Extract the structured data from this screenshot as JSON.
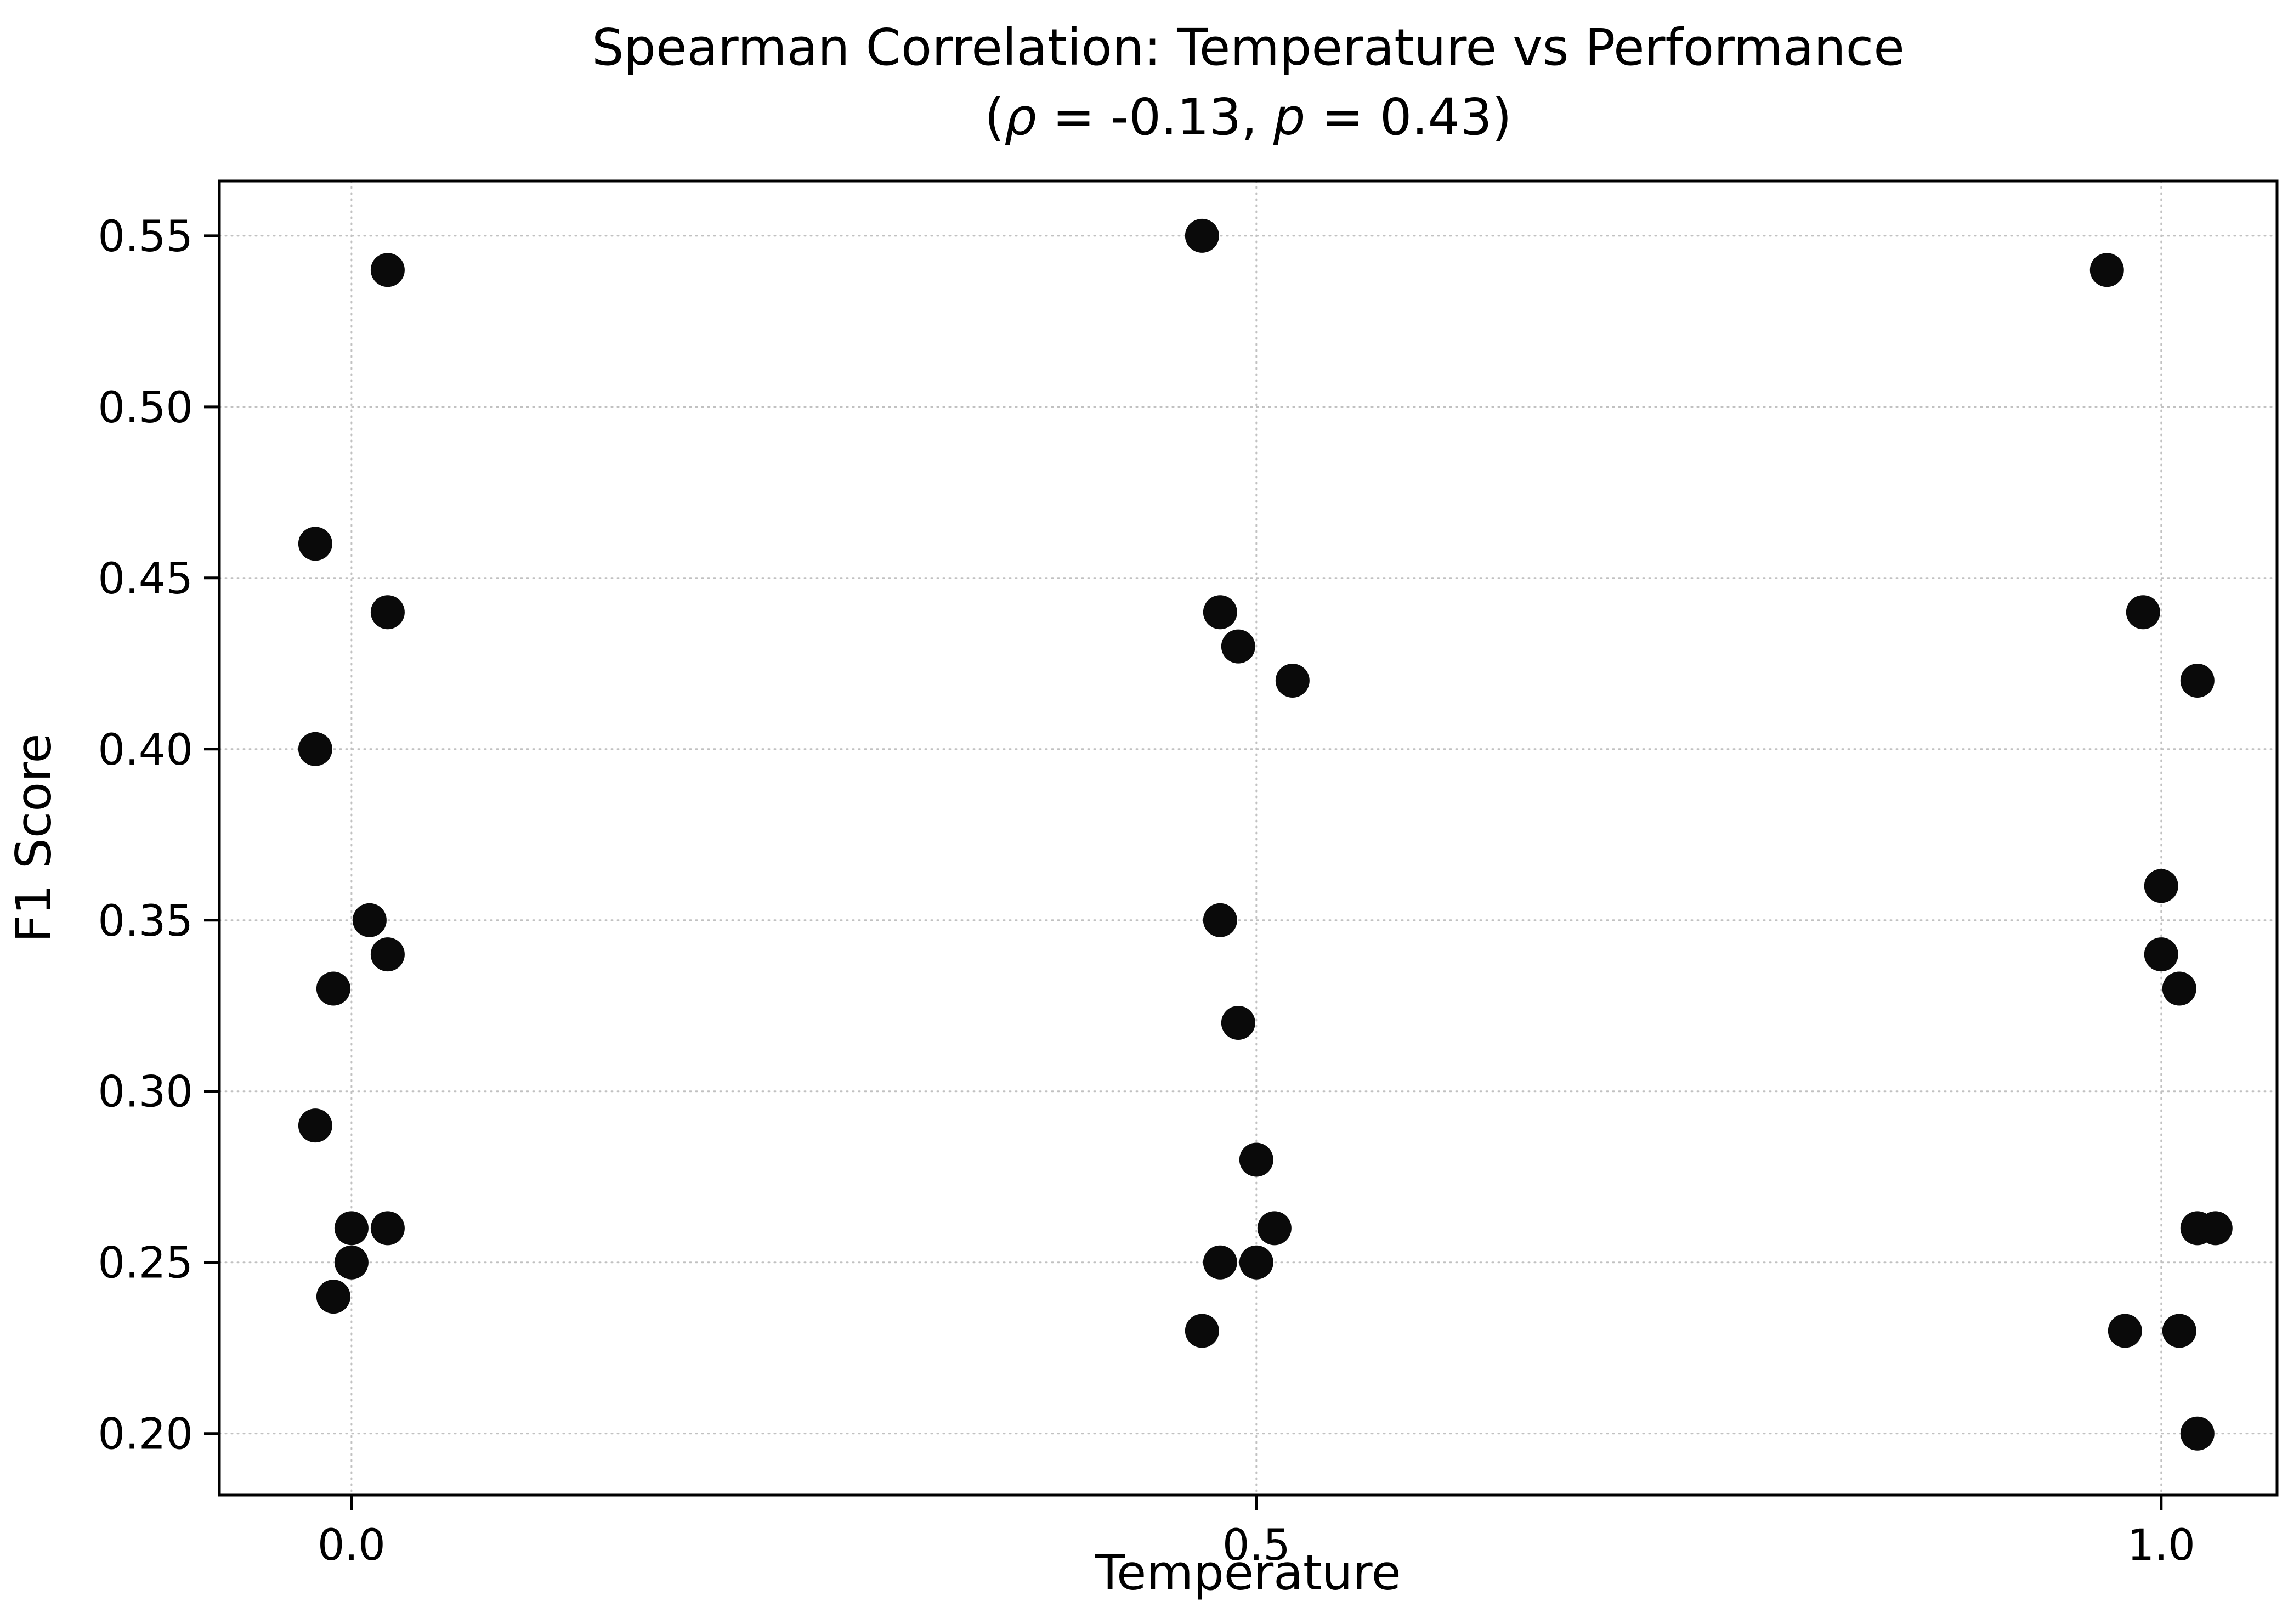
{
  "chart_data": {
    "type": "scatter",
    "title": "Spearman Correlation: Temperature vs Performance",
    "subtitle_text": "(ρ = -0.13, p = 0.43)",
    "subtitle_parts": [
      {
        "t": "(",
        "italic": false
      },
      {
        "t": "ρ",
        "italic": true
      },
      {
        "t": " = -0.13, ",
        "italic": false
      },
      {
        "t": "p",
        "italic": true
      },
      {
        "t": " = 0.43)",
        "italic": false
      }
    ],
    "xlabel": "Temperature",
    "ylabel": "F1 Score",
    "xlim": [
      -0.073,
      1.064
    ],
    "ylim": [
      0.182,
      0.566
    ],
    "x_ticks": [
      0.0,
      0.5,
      1.0
    ],
    "x_tick_labels": [
      "0.0",
      "0.5",
      "1.0"
    ],
    "y_ticks": [
      0.2,
      0.25,
      0.3,
      0.35,
      0.4,
      0.45,
      0.5,
      0.55
    ],
    "y_tick_labels": [
      "0.20",
      "0.25",
      "0.30",
      "0.35",
      "0.40",
      "0.45",
      "0.50",
      "0.55"
    ],
    "grid": true,
    "legend_position": "none",
    "marker_color": "#0a0a0a",
    "marker_radius": 31,
    "axis_color": "#000000",
    "grid_color": "#bbbbbb",
    "points": [
      {
        "x": 0.02,
        "y": 0.54
      },
      {
        "x": -0.02,
        "y": 0.46
      },
      {
        "x": 0.02,
        "y": 0.44
      },
      {
        "x": -0.02,
        "y": 0.4
      },
      {
        "x": 0.01,
        "y": 0.35
      },
      {
        "x": 0.02,
        "y": 0.34
      },
      {
        "x": -0.01,
        "y": 0.33
      },
      {
        "x": -0.02,
        "y": 0.29
      },
      {
        "x": 0.0,
        "y": 0.26
      },
      {
        "x": 0.02,
        "y": 0.26
      },
      {
        "x": 0.0,
        "y": 0.25
      },
      {
        "x": -0.01,
        "y": 0.24
      },
      {
        "x": 0.47,
        "y": 0.55
      },
      {
        "x": 0.48,
        "y": 0.44
      },
      {
        "x": 0.49,
        "y": 0.43
      },
      {
        "x": 0.52,
        "y": 0.42
      },
      {
        "x": 0.48,
        "y": 0.35
      },
      {
        "x": 0.49,
        "y": 0.32
      },
      {
        "x": 0.5,
        "y": 0.28
      },
      {
        "x": 0.51,
        "y": 0.26
      },
      {
        "x": 0.48,
        "y": 0.25
      },
      {
        "x": 0.5,
        "y": 0.25
      },
      {
        "x": 0.47,
        "y": 0.23
      },
      {
        "x": 0.97,
        "y": 0.54
      },
      {
        "x": 0.99,
        "y": 0.44
      },
      {
        "x": 1.02,
        "y": 0.42
      },
      {
        "x": 1.0,
        "y": 0.36
      },
      {
        "x": 1.0,
        "y": 0.34
      },
      {
        "x": 1.01,
        "y": 0.33
      },
      {
        "x": 1.02,
        "y": 0.26
      },
      {
        "x": 1.03,
        "y": 0.26
      },
      {
        "x": 0.98,
        "y": 0.23
      },
      {
        "x": 1.01,
        "y": 0.23
      },
      {
        "x": 1.02,
        "y": 0.2
      }
    ]
  }
}
